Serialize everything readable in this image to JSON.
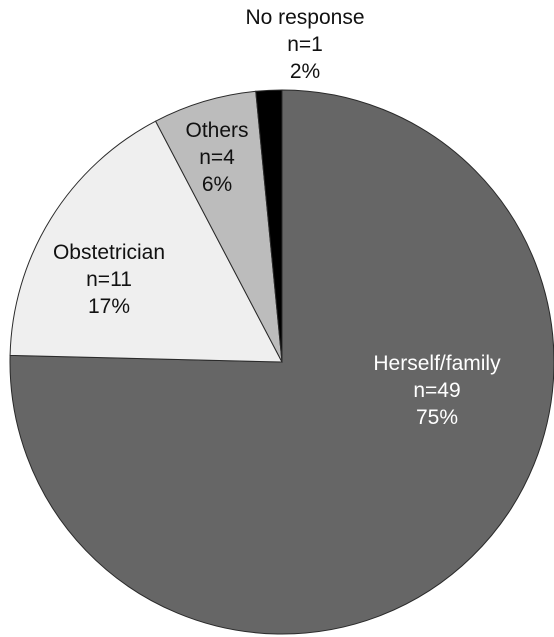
{
  "chart_data": {
    "type": "pie",
    "title": "",
    "slices": [
      {
        "label": "Herself/family",
        "count_text": "n=49",
        "percent_text": "75%",
        "value": 49,
        "color": "#666666"
      },
      {
        "label": "Obstetrician",
        "count_text": "n=11",
        "percent_text": "17%",
        "value": 11,
        "color": "#efefef"
      },
      {
        "label": "Others",
        "count_text": "n=4",
        "percent_text": "6%",
        "value": 4,
        "color": "#bcbcbc"
      },
      {
        "label": "No response",
        "count_text": "n=1",
        "percent_text": "2%",
        "value": 1,
        "color": "#000000"
      }
    ],
    "start_angle_deg": 0,
    "direction": "clockwise"
  }
}
